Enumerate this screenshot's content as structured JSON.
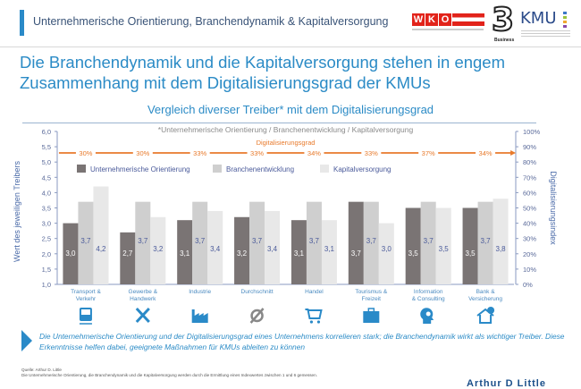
{
  "header": {
    "title": "Unternehmerische Orientierung, Branchendynamik & Kapitalversorgung",
    "logos": {
      "wko": "WKO",
      "three": "3",
      "three_sub": "Business",
      "kmu": "KMU"
    }
  },
  "main_title": "Die Branchendynamik und die Kapitalversorgung stehen in engem Zusammenhang mit dem Digitalisierungsgrad der KMUs",
  "colors": {
    "accent_blue": "#2b8bc6",
    "series_dark": "#7a7474",
    "series_mid": "#cfcfcf",
    "series_light": "#e8e8e8",
    "digital_line": "#e87a2b"
  },
  "chart_data": {
    "type": "bar",
    "title": "Vergleich diverser Treiber* mit dem Digitalisierungsgrad",
    "subtitle": "*Unternehmerische Orientierung / Branchenentwicklung / Kapitalversorgung",
    "categories": [
      "Transport & Verkehr",
      "Gewerbe & Handwerk",
      "Industrie",
      "Durchschnitt",
      "Handel",
      "Tourismus & Freizeit",
      "Information & Consulting",
      "Bank & Versicherung"
    ],
    "category_lines": [
      [
        "Transport &",
        "Verkehr"
      ],
      [
        "Gewerbe &",
        "Handwerk"
      ],
      [
        "Industrie"
      ],
      [
        "Durchschnitt"
      ],
      [
        "Handel"
      ],
      [
        "Tourismus &",
        "Freizeit"
      ],
      [
        "Information",
        "& Consulting"
      ],
      [
        "Bank &",
        "Versicherung"
      ]
    ],
    "category_icons": [
      "train-icon",
      "tools-icon",
      "factory-icon",
      "average-icon",
      "cart-icon",
      "suitcase-icon",
      "head-bulb-icon",
      "house-money-icon"
    ],
    "series": [
      {
        "name": "Unternehmerische Orientierung",
        "values": [
          3.0,
          2.7,
          3.1,
          3.2,
          3.1,
          3.7,
          3.5,
          3.5
        ],
        "labels": [
          "3,0",
          "2,7",
          "3,1",
          "3,2",
          "3,1",
          "3,7",
          "3,5",
          "3,5"
        ]
      },
      {
        "name": "Branchenentwicklung",
        "values": [
          3.7,
          3.7,
          3.7,
          3.7,
          3.7,
          3.7,
          3.7,
          3.7
        ],
        "labels": [
          "3,7",
          "3,7",
          "3,7",
          "3,7",
          "3,7",
          "3,7",
          "3,7",
          "3,7"
        ]
      },
      {
        "name": "Kapitalversorgung",
        "values": [
          4.2,
          3.2,
          3.4,
          3.4,
          3.1,
          3.0,
          3.5,
          3.8
        ],
        "labels": [
          "4,2",
          "3,2",
          "3,4",
          "3,4",
          "3,1",
          "3,0",
          "3,5",
          "3,8"
        ]
      }
    ],
    "digitalisierungsgrad": {
      "name": "Digitalisierungsgrad",
      "values": [
        30,
        30,
        33,
        33,
        34,
        33,
        37,
        34
      ],
      "labels": [
        "30%",
        "30%",
        "33%",
        "33%",
        "34%",
        "33%",
        "37%",
        "34%"
      ]
    },
    "ylabel": "Wert des jeweiligen Treibers",
    "ylim": [
      1.0,
      6.0
    ],
    "yticks": [
      "1,0",
      "1,5",
      "2,0",
      "2,5",
      "3,0",
      "3,5",
      "4,0",
      "4,5",
      "5,0",
      "5,5",
      "6,0"
    ],
    "y2label": "Digitalisierungsindex",
    "y2lim": [
      0,
      100
    ],
    "y2ticks": [
      "0%",
      "10%",
      "20%",
      "30%",
      "40%",
      "50%",
      "60%",
      "70%",
      "80%",
      "90%",
      "100%"
    ],
    "legend": "top-left",
    "grid": false
  },
  "conclusion": "Die Unternehmerische Orientierung und der Digitalisierungsgrad eines Unternehmens korrelieren stark; die Branchendynamik wirkt als wichtiger Treiber. Diese Erkenntnisse helfen dabei, geeignete Maßnahmen für KMUs ableiten zu können",
  "source": "Quelle: Arthur D. Little",
  "source_note": "Die Unternehmerische Orientierung, die Branchendynamik und die Kapitalversorgung werden durch die Ermittlung eines Indexwertes zwischen 1 und 6 gemessen.",
  "footer_logo": "Arthur D Little"
}
